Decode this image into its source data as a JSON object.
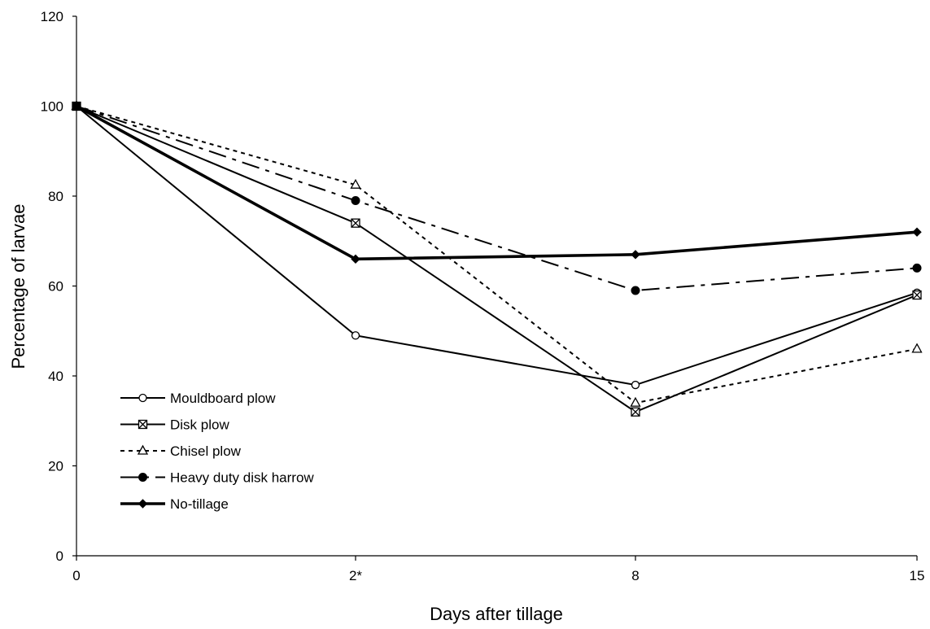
{
  "chart_data": {
    "type": "line",
    "title": "",
    "xlabel": "Days after tillage",
    "ylabel": "Percentage of larvae",
    "categories": [
      "0",
      "2*",
      "8",
      "15"
    ],
    "ylim": [
      0,
      120
    ],
    "yticks": [
      "0",
      "20",
      "40",
      "60",
      "80",
      "100",
      "120"
    ],
    "grid": false,
    "legend_position": "bottom-left",
    "series": [
      {
        "name": "Mouldboard plow",
        "values": [
          100,
          49,
          38,
          58.5
        ],
        "marker": "open-circle",
        "dash": "solid",
        "weight": "normal",
        "color": "#000000"
      },
      {
        "name": "Disk plow",
        "values": [
          100,
          74,
          32,
          58
        ],
        "marker": "crossed-square",
        "dash": "solid",
        "weight": "normal",
        "color": "#000000"
      },
      {
        "name": "Chisel plow",
        "values": [
          100,
          82.5,
          34,
          46
        ],
        "marker": "open-triangle",
        "dash": "dotted",
        "weight": "normal",
        "color": "#000000"
      },
      {
        "name": "Heavy duty disk harrow",
        "values": [
          100,
          79,
          59,
          64
        ],
        "marker": "filled-circle",
        "dash": "dash-dot",
        "weight": "normal",
        "color": "#000000"
      },
      {
        "name": "No-tillage",
        "values": [
          100,
          66,
          67,
          72
        ],
        "marker": "filled-diamond",
        "dash": "solid",
        "weight": "bold",
        "color": "#000000"
      }
    ]
  }
}
